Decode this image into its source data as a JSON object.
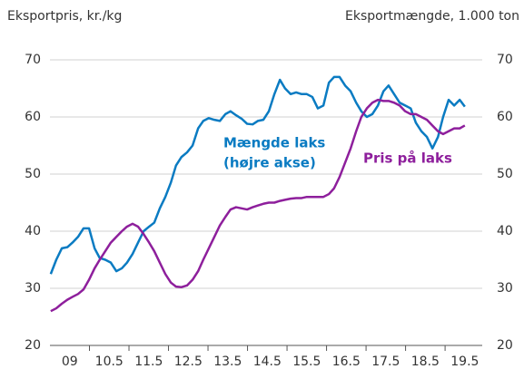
{
  "chart_data": {
    "type": "line",
    "ylabel": "Eksportpris, kr./kg",
    "y2label": "Eksportmængde, 1.000 ton",
    "annotations": [
      "(højre akse)"
    ],
    "x": [
      9.02,
      9.16,
      9.3,
      9.44,
      9.57,
      9.71,
      9.85,
      9.99,
      10.13,
      10.26,
      10.4,
      10.54,
      10.68,
      10.82,
      10.95,
      11.09,
      11.23,
      11.37,
      11.51,
      11.64,
      11.78,
      11.92,
      12.06,
      12.19,
      12.33,
      12.47,
      12.61,
      12.75,
      12.88,
      13.02,
      13.16,
      13.3,
      13.44,
      13.57,
      13.71,
      13.85,
      13.99,
      14.13,
      14.26,
      14.4,
      14.54,
      14.68,
      14.82,
      14.95,
      15.09,
      15.23,
      15.37,
      15.5,
      15.64,
      15.78,
      15.92,
      16.06,
      16.19,
      16.33,
      16.47,
      16.61,
      16.75,
      16.88,
      17.02,
      17.16,
      17.3,
      17.44,
      17.57,
      17.71,
      17.85,
      17.99,
      18.13,
      18.26,
      18.4,
      18.54,
      18.68,
      18.82,
      18.95,
      19.09,
      19.23,
      19.37,
      19.5
    ],
    "series": [
      {
        "name": "Mængde laks",
        "color": "#0a7bc2",
        "axis": "y2",
        "values": [
          32.5,
          35,
          37,
          37.2,
          38,
          39,
          40.5,
          40.5,
          37,
          35.3,
          35,
          34.5,
          33,
          33.5,
          34.5,
          36,
          38,
          40,
          40.8,
          41.5,
          44,
          46,
          48.5,
          51.5,
          53,
          53.8,
          55,
          58,
          59.3,
          59.8,
          59.5,
          59.3,
          60.5,
          61,
          60.3,
          59.7,
          58.8,
          58.7,
          59.3,
          59.5,
          61,
          64,
          66.5,
          65,
          64,
          64.3,
          64,
          64,
          63.5,
          61.5,
          62,
          66,
          67,
          67,
          65.5,
          64.5,
          62.5,
          61,
          60,
          60.5,
          62,
          64.5,
          65.5,
          64,
          62.5,
          62,
          61.5,
          59,
          57.5,
          56.5,
          54.5,
          56.5,
          60,
          63,
          62,
          63,
          61.8
        ]
      },
      {
        "name": "Pris på laks",
        "color": "#8e1f9c",
        "values": [
          26,
          26.5,
          27.3,
          28,
          28.5,
          29,
          29.8,
          31.5,
          33.5,
          35,
          36.5,
          38,
          39,
          40,
          40.8,
          41.3,
          40.8,
          39.5,
          38,
          36.5,
          34.5,
          32.5,
          31,
          30.3,
          30.2,
          30.5,
          31.5,
          33,
          35,
          37,
          39,
          41,
          42.5,
          43.8,
          44.2,
          44,
          43.8,
          44.2,
          44.5,
          44.8,
          45,
          45,
          45.3,
          45.5,
          45.7,
          45.8,
          45.8,
          46,
          46,
          46,
          46,
          46.5,
          47.5,
          49.5,
          52,
          54.5,
          57.5,
          60,
          61.5,
          62.5,
          63,
          62.8,
          62.8,
          62.5,
          62,
          61,
          60.5,
          60.5,
          60,
          59.5,
          58.5,
          57.5,
          57,
          57.5,
          58,
          58,
          58.5
        ]
      }
    ],
    "xlim": [
      9,
      19.94
    ],
    "xticks": [
      {
        "value": 9.5,
        "label": "09"
      },
      10.5,
      11.5,
      12.5,
      13.5,
      14.5,
      15.5,
      16.5,
      17.5,
      18.5,
      19.5
    ],
    "ylim": [
      20,
      70
    ],
    "yticks": [
      20,
      30,
      40,
      50,
      60,
      70
    ],
    "y2lim": [
      20,
      70
    ],
    "y2ticks": [
      20,
      30,
      40,
      50,
      60,
      70
    ],
    "grid": true
  }
}
